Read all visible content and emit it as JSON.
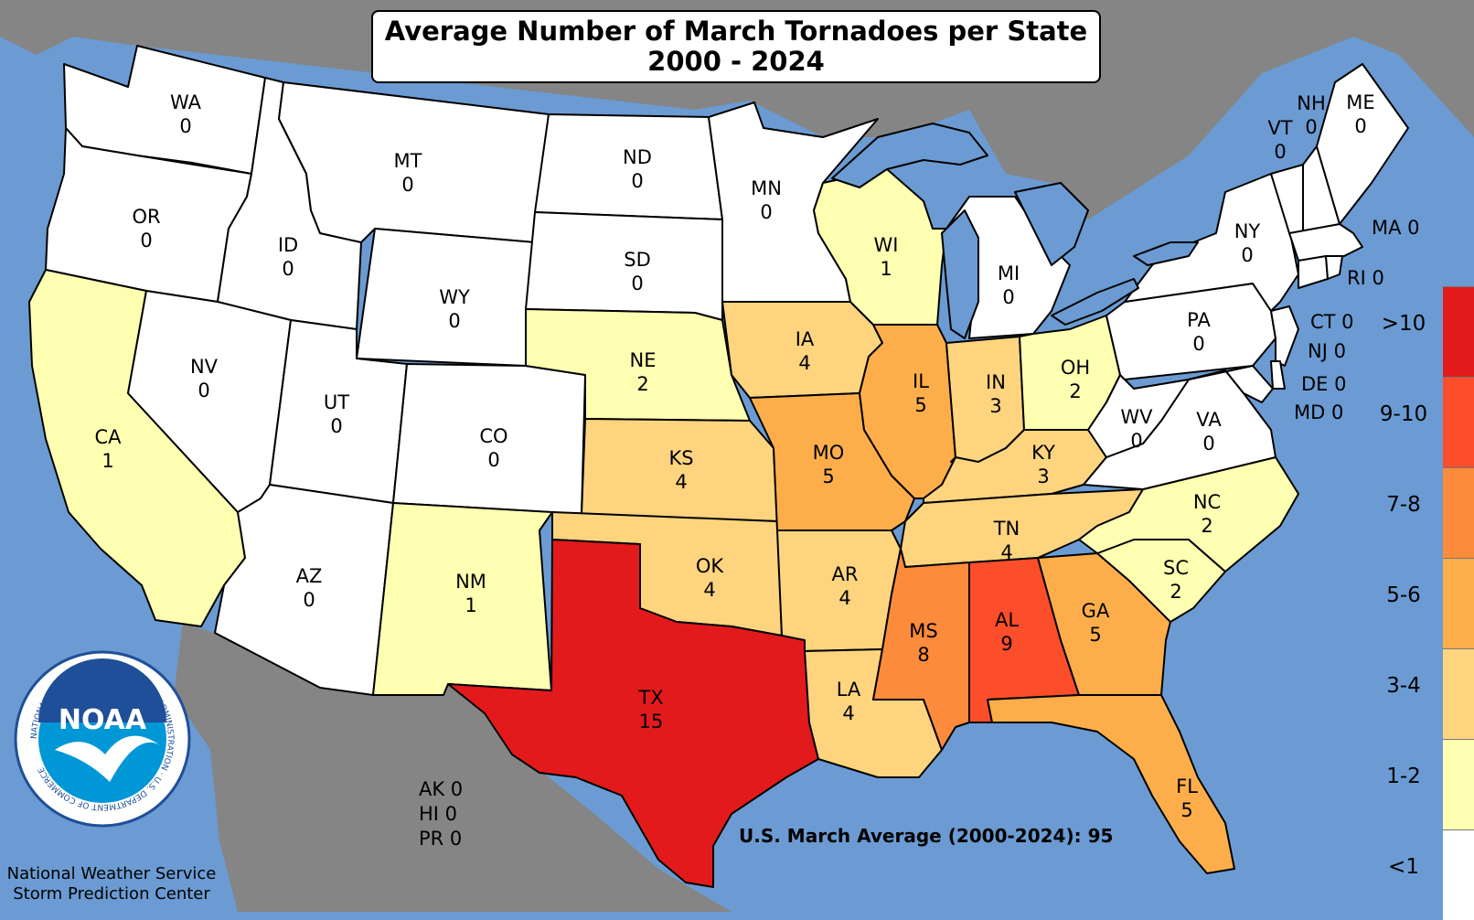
{
  "title": {
    "line1": "Average Number of March Tornadoes per State",
    "line2": "2000 - 2024"
  },
  "colors": {
    "ocean": "#6b9bd2",
    "land_outside": "#858585",
    "lt1": "#ffffff",
    "c1_2": "#ffffb2",
    "c3_4": "#fed47f",
    "c5_6": "#fdae4b",
    "c7_8": "#fd8b3c",
    "c9_10": "#fc4e2a",
    "gt10": "#e31a1c"
  },
  "legend": [
    {
      "label": ">10",
      "color": "#e31a1c"
    },
    {
      "label": "9-10",
      "color": "#fc4e2a"
    },
    {
      "label": "7-8",
      "color": "#fd8b3c"
    },
    {
      "label": "5-6",
      "color": "#fdae4b"
    },
    {
      "label": "3-4",
      "color": "#fed47f"
    },
    {
      "label": "1-2",
      "color": "#ffffb2"
    },
    {
      "label": "<1",
      "color": "#ffffff"
    }
  ],
  "states": [
    {
      "abbr": "WA",
      "value": "0"
    },
    {
      "abbr": "OR",
      "value": "0"
    },
    {
      "abbr": "CA",
      "value": "1"
    },
    {
      "abbr": "ID",
      "value": "0"
    },
    {
      "abbr": "NV",
      "value": "0"
    },
    {
      "abbr": "MT",
      "value": "0"
    },
    {
      "abbr": "WY",
      "value": "0"
    },
    {
      "abbr": "UT",
      "value": "0"
    },
    {
      "abbr": "AZ",
      "value": "0"
    },
    {
      "abbr": "CO",
      "value": "0"
    },
    {
      "abbr": "NM",
      "value": "1"
    },
    {
      "abbr": "ND",
      "value": "0"
    },
    {
      "abbr": "SD",
      "value": "0"
    },
    {
      "abbr": "NE",
      "value": "2"
    },
    {
      "abbr": "KS",
      "value": "4"
    },
    {
      "abbr": "OK",
      "value": "4"
    },
    {
      "abbr": "TX",
      "value": "15"
    },
    {
      "abbr": "MN",
      "value": "0"
    },
    {
      "abbr": "IA",
      "value": "4"
    },
    {
      "abbr": "MO",
      "value": "5"
    },
    {
      "abbr": "AR",
      "value": "4"
    },
    {
      "abbr": "LA",
      "value": "4"
    },
    {
      "abbr": "WI",
      "value": "1"
    },
    {
      "abbr": "IL",
      "value": "5"
    },
    {
      "abbr": "MS",
      "value": "8"
    },
    {
      "abbr": "MI",
      "value": "0"
    },
    {
      "abbr": "IN",
      "value": "3"
    },
    {
      "abbr": "KY",
      "value": "3"
    },
    {
      "abbr": "TN",
      "value": "4"
    },
    {
      "abbr": "AL",
      "value": "9"
    },
    {
      "abbr": "OH",
      "value": "2"
    },
    {
      "abbr": "GA",
      "value": "5"
    },
    {
      "abbr": "FL",
      "value": "5"
    },
    {
      "abbr": "SC",
      "value": "2"
    },
    {
      "abbr": "NC",
      "value": "2"
    },
    {
      "abbr": "VA",
      "value": "0"
    },
    {
      "abbr": "WV",
      "value": "0"
    },
    {
      "abbr": "PA",
      "value": "0"
    },
    {
      "abbr": "NY",
      "value": "0"
    },
    {
      "abbr": "VT",
      "value": "0"
    },
    {
      "abbr": "NH",
      "value": "0"
    },
    {
      "abbr": "ME",
      "value": "0"
    }
  ],
  "small_states": {
    "ma": "MA 0",
    "ri": "RI 0",
    "ct": "CT 0",
    "nj": "NJ 0",
    "de": "DE 0",
    "md": "MD 0"
  },
  "offmap": {
    "ak": "AK 0",
    "hi": "HI 0",
    "pr": "PR 0"
  },
  "us_average": "U.S. March Average (2000-2024): 95",
  "logo": {
    "text": "NOAA",
    "ring": "NATIONAL OCEANIC AND ATMOSPHERIC ADMINISTRATION · U.S. DEPARTMENT OF COMMERCE"
  },
  "credit": {
    "line1": "National Weather Service",
    "line2": "Storm Prediction Center"
  }
}
